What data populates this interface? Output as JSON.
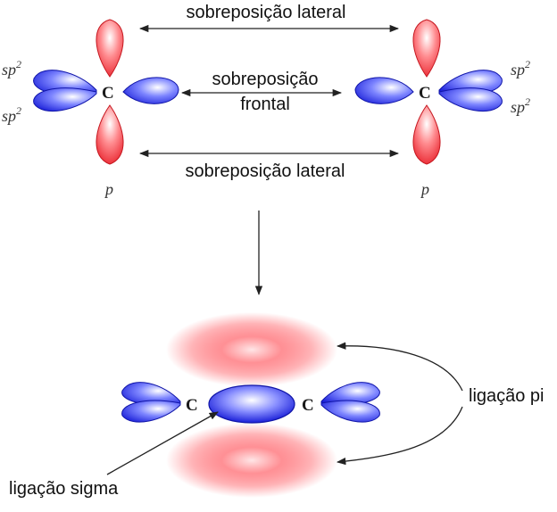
{
  "labels": {
    "lateral_top": "sobreposição lateral",
    "frontal_line1": "sobreposição",
    "frontal_line2": "frontal",
    "lateral_bottom": "sobreposição lateral",
    "pi_bond": "ligação pi",
    "sigma_bond": "ligação sigma"
  },
  "atoms": {
    "left_symbol": "C",
    "right_symbol": "C",
    "bond_left_symbol": "C",
    "bond_right_symbol": "C"
  },
  "orbitals": {
    "hybrid_base": "sp",
    "hybrid_exp": "2",
    "p_label": "p"
  },
  "colors": {
    "p_orbital": "#e8202a",
    "sp2_orbital": "#1a1fd8",
    "arrow": "#222222"
  }
}
